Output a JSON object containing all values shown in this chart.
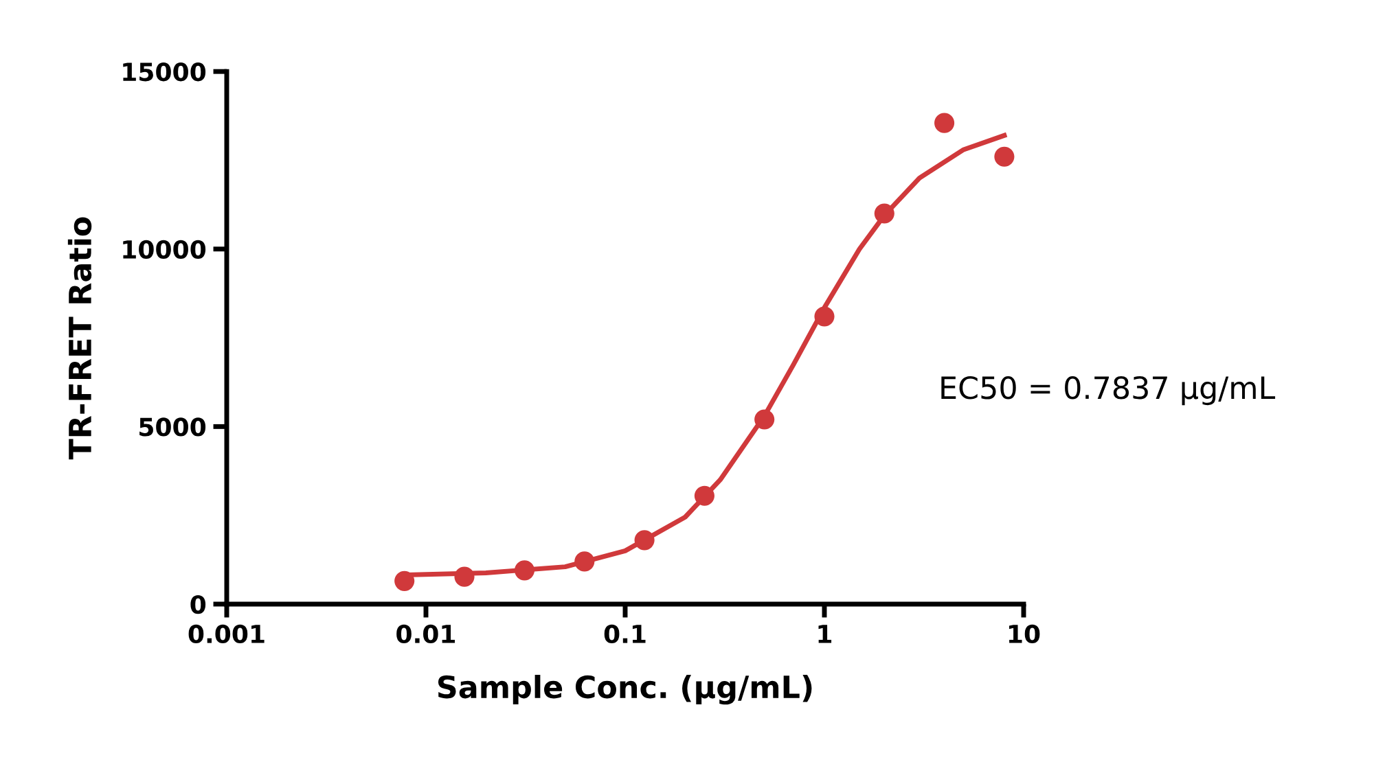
{
  "chart_data": {
    "type": "scatter",
    "xlabel": "Sample Conc. (µg/mL)",
    "ylabel": "TR-FRET Ratio",
    "log": "x",
    "grid": false,
    "xlim": [
      0.001,
      10
    ],
    "xticks": [
      0.001,
      0.01,
      0.1,
      1,
      10
    ],
    "ylim": [
      0,
      15000
    ],
    "yticks": [
      0,
      5000,
      10000,
      15000
    ],
    "series": [
      {
        "color": "#d0393b",
        "marker": "circle",
        "x": [
          0.0078,
          0.0156,
          0.03125,
          0.0625,
          0.125,
          0.25,
          0.5,
          1,
          2,
          4,
          8
        ],
        "values": [
          650,
          770,
          950,
          1200,
          1800,
          3050,
          5200,
          8100,
          11000,
          13550,
          12600
        ]
      },
      {
        "type": "line",
        "color": "#d0393b",
        "marker": "none",
        "line_style": "solid",
        "x": [
          0.008,
          0.02,
          0.05,
          0.1,
          0.2,
          0.3,
          0.5,
          0.7,
          1,
          1.5,
          2,
          3,
          5,
          8
        ],
        "values": [
          820,
          880,
          1050,
          1500,
          2450,
          3500,
          5300,
          6750,
          8350,
          10000,
          10950,
          12000,
          12800,
          13200
        ]
      }
    ],
    "annotations": [
      "EC50 = 0.7837 µg/mL"
    ]
  }
}
